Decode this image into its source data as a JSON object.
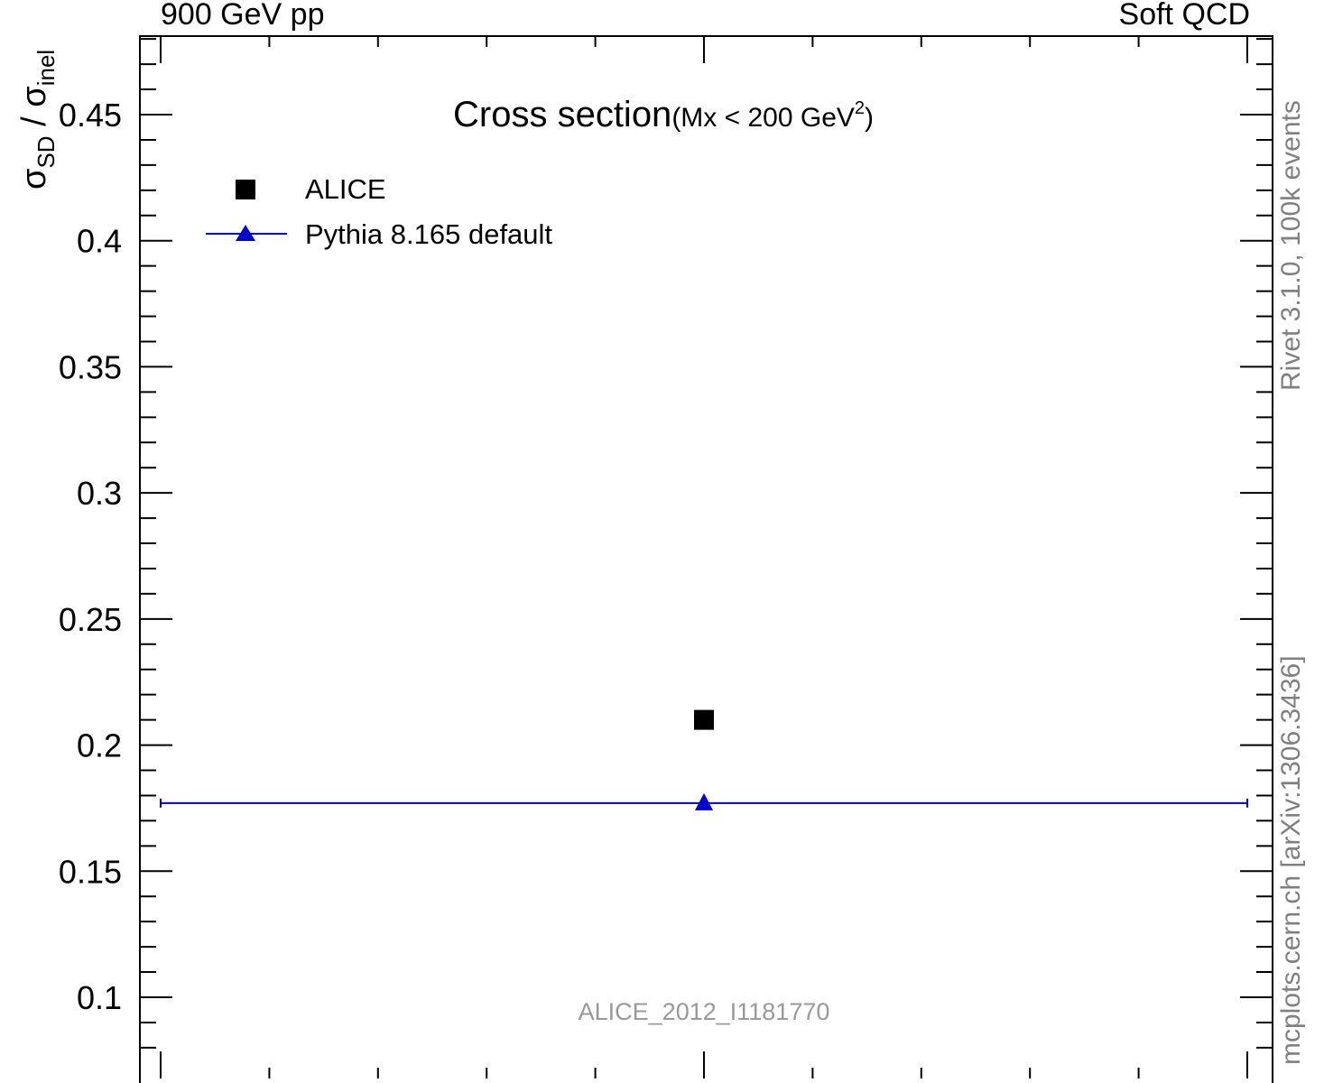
{
  "header": {
    "left_label": "900 GeV pp",
    "right_label": "Soft QCD"
  },
  "chart_data": {
    "type": "scatter",
    "title": "Cross section",
    "title_suffix": "(Mx < 200 GeV",
    "title_suffix_sup": "2",
    "title_suffix_close": ")",
    "ylabel": {
      "sigma": "σ",
      "num_sub": "SD",
      "slash": " / ",
      "den_sub": "inel"
    },
    "xlabel": "",
    "ylim": [
      0.075,
      0.482
    ],
    "xlim": [
      0,
      1
    ],
    "yticks_major": [
      0.1,
      0.15,
      0.2,
      0.25,
      0.3,
      0.35,
      0.4,
      0.45
    ],
    "ytick_labels": [
      "0.1",
      "0.15",
      "0.2",
      "0.25",
      "0.3",
      "0.35",
      "0.4",
      "0.45"
    ],
    "grid": false,
    "legend_position": "top-left",
    "series": [
      {
        "name": "ALICE",
        "marker": "square",
        "color": "#000000",
        "x": [
          0.5
        ],
        "y": [
          0.21
        ]
      },
      {
        "name": "Pythia 8.165 default",
        "marker": "triangle",
        "color": "#0000cc",
        "x": [
          0.5
        ],
        "y": [
          0.177
        ],
        "xerr": [
          0.5
        ]
      }
    ],
    "annotation": "ALICE_2012_I1181770"
  },
  "side_labels": {
    "upper": "Rivet 3.1.0,  100k events",
    "lower": "mcplots.cern.ch [arXiv:1306.3436]"
  },
  "colors": {
    "data": "#000000",
    "mc": "#0000cc",
    "side_text": "#808080",
    "annotation": "#999999"
  }
}
